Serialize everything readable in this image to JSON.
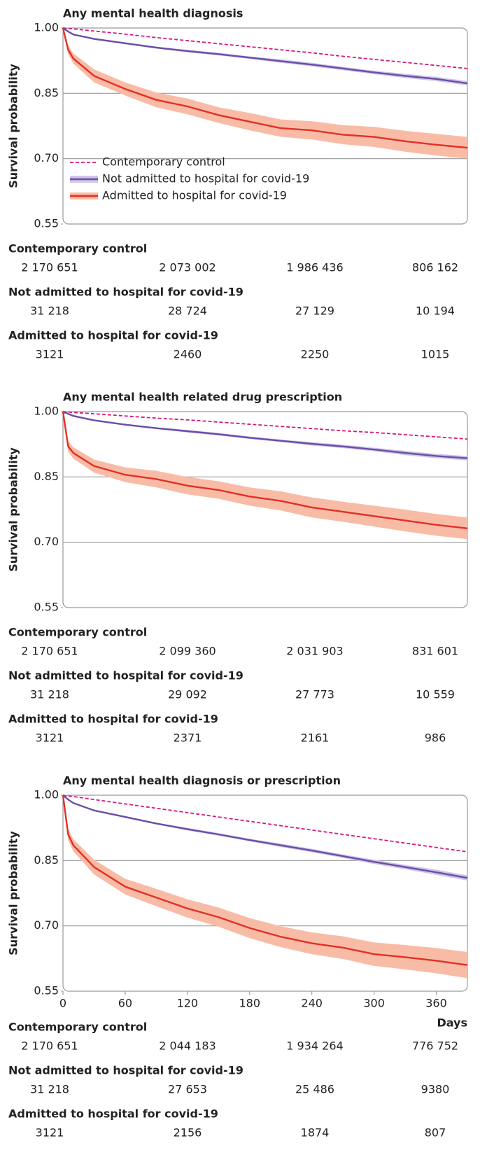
{
  "chart_data": [
    {
      "type": "line",
      "title": "Any mental health diagnosis",
      "ylabel": "Survival probability",
      "x": [
        0,
        5,
        10,
        30,
        60,
        90,
        120,
        150,
        180,
        210,
        240,
        270,
        300,
        330,
        360,
        390
      ],
      "xlim": [
        0,
        390
      ],
      "ylim": [
        0.55,
        1
      ],
      "yticks": [
        {
          "value": 1,
          "label": "1.00"
        },
        0.85,
        {
          "value": 0.7,
          "label": "0.70"
        },
        0.55
      ],
      "grid": true,
      "legend": "lower left",
      "series": [
        {
          "name": "Contemporary control",
          "color": "#d6197a",
          "line_style": "dashed",
          "values": [
            1,
            0.999,
            0.998,
            0.993,
            0.986,
            0.978,
            0.971,
            0.964,
            0.957,
            0.95,
            0.943,
            0.935,
            0.928,
            0.921,
            0.914,
            0.907
          ],
          "at_risk": [
            "2 170 651",
            "2 073 002",
            "1 986 436",
            "806 162"
          ]
        },
        {
          "name": "Not admitted to hospital for covid-19",
          "color": "#6a4fa8",
          "band_color": "#cfc5ea",
          "line_style": "solid",
          "values": [
            1,
            0.992,
            0.985,
            0.975,
            0.965,
            0.955,
            0.947,
            0.94,
            0.932,
            0.924,
            0.916,
            0.907,
            0.898,
            0.89,
            0.883,
            0.873
          ],
          "lower": [
            1,
            0.991,
            0.984,
            0.973,
            0.963,
            0.953,
            0.944,
            0.937,
            0.929,
            0.92,
            0.912,
            0.903,
            0.894,
            0.885,
            0.878,
            0.868
          ],
          "upper": [
            1,
            0.993,
            0.986,
            0.977,
            0.967,
            0.957,
            0.95,
            0.943,
            0.935,
            0.928,
            0.92,
            0.911,
            0.902,
            0.895,
            0.888,
            0.878
          ],
          "at_risk": [
            "31 218",
            "28 724",
            "27 129",
            "10 194"
          ]
        },
        {
          "name": "Admitted to hospital for covid-19",
          "color": "#e32f26",
          "band_color": "#f8bca6",
          "line_style": "solid",
          "values": [
            1,
            0.95,
            0.93,
            0.89,
            0.86,
            0.835,
            0.82,
            0.8,
            0.785,
            0.77,
            0.765,
            0.755,
            0.75,
            0.74,
            0.732,
            0.725
          ],
          "lower": [
            1,
            0.94,
            0.918,
            0.875,
            0.845,
            0.818,
            0.802,
            0.782,
            0.765,
            0.75,
            0.744,
            0.733,
            0.727,
            0.716,
            0.707,
            0.7
          ],
          "upper": [
            1,
            0.96,
            0.942,
            0.905,
            0.875,
            0.852,
            0.838,
            0.818,
            0.805,
            0.79,
            0.786,
            0.777,
            0.773,
            0.764,
            0.757,
            0.75
          ],
          "at_risk": [
            "3121",
            "2460",
            "2250",
            "1015"
          ]
        }
      ]
    },
    {
      "type": "line",
      "title": "Any mental health related drug prescription",
      "ylabel": "Survival probability",
      "x": [
        0,
        5,
        10,
        30,
        60,
        90,
        120,
        150,
        180,
        210,
        240,
        270,
        300,
        330,
        360,
        390
      ],
      "xlim": [
        0,
        390
      ],
      "ylim": [
        0.55,
        1
      ],
      "yticks": [
        {
          "value": 1,
          "label": "1.00"
        },
        0.85,
        {
          "value": 0.7,
          "label": "0.70"
        },
        0.55
      ],
      "grid": true,
      "series": [
        {
          "name": "Contemporary control",
          "color": "#d6197a",
          "line_style": "dashed",
          "values": [
            1,
            0.999,
            0.998,
            0.995,
            0.99,
            0.985,
            0.981,
            0.976,
            0.971,
            0.966,
            0.961,
            0.956,
            0.952,
            0.947,
            0.942,
            0.937
          ],
          "at_risk": [
            "2 170 651",
            "2 099 360",
            "2 031 903",
            "831 601"
          ]
        },
        {
          "name": "Not admitted to hospital for covid-19",
          "color": "#6a4fa8",
          "band_color": "#cfc5ea",
          "line_style": "solid",
          "values": [
            1,
            0.995,
            0.99,
            0.98,
            0.97,
            0.962,
            0.955,
            0.948,
            0.94,
            0.933,
            0.926,
            0.92,
            0.913,
            0.905,
            0.898,
            0.893
          ],
          "lower": [
            1,
            0.994,
            0.989,
            0.978,
            0.968,
            0.96,
            0.952,
            0.945,
            0.937,
            0.93,
            0.922,
            0.916,
            0.909,
            0.9,
            0.893,
            0.888
          ],
          "upper": [
            1,
            0.996,
            0.991,
            0.982,
            0.972,
            0.964,
            0.958,
            0.951,
            0.943,
            0.936,
            0.93,
            0.924,
            0.917,
            0.91,
            0.903,
            0.898
          ],
          "at_risk": [
            "31 218",
            "29 092",
            "27 773",
            "10 559"
          ]
        },
        {
          "name": "Admitted to hospital for covid-19",
          "color": "#e32f26",
          "band_color": "#f8bca6",
          "line_style": "solid",
          "values": [
            1,
            0.92,
            0.905,
            0.875,
            0.855,
            0.845,
            0.83,
            0.82,
            0.805,
            0.795,
            0.78,
            0.77,
            0.76,
            0.75,
            0.74,
            0.732
          ],
          "lower": [
            1,
            0.908,
            0.892,
            0.86,
            0.838,
            0.826,
            0.81,
            0.8,
            0.784,
            0.773,
            0.757,
            0.747,
            0.736,
            0.725,
            0.715,
            0.707
          ],
          "upper": [
            1,
            0.932,
            0.918,
            0.89,
            0.872,
            0.864,
            0.85,
            0.84,
            0.826,
            0.817,
            0.803,
            0.793,
            0.784,
            0.775,
            0.765,
            0.757
          ],
          "at_risk": [
            "3121",
            "2371",
            "2161",
            "986"
          ]
        }
      ]
    },
    {
      "type": "line",
      "title": "Any mental health diagnosis or prescription",
      "ylabel": "Survival probability",
      "xlabel": "Days",
      "x": [
        0,
        5,
        10,
        30,
        60,
        90,
        120,
        150,
        180,
        210,
        240,
        270,
        300,
        330,
        360,
        390
      ],
      "xlim": [
        0,
        390
      ],
      "ylim": [
        0.55,
        1
      ],
      "xticks": [
        0,
        60,
        120,
        180,
        240,
        300,
        360
      ],
      "yticks": [
        {
          "value": 1,
          "label": "1.00"
        },
        0.85,
        {
          "value": 0.7,
          "label": "0.70"
        },
        0.55
      ],
      "grid": true,
      "series": [
        {
          "name": "Contemporary control",
          "color": "#d6197a",
          "line_style": "dashed",
          "values": [
            1,
            0.998,
            0.997,
            0.99,
            0.98,
            0.97,
            0.96,
            0.95,
            0.94,
            0.93,
            0.92,
            0.91,
            0.9,
            0.89,
            0.88,
            0.87
          ],
          "at_risk": [
            "2 170 651",
            "2 044 183",
            "1 934 264",
            "776 752"
          ]
        },
        {
          "name": "Not admitted to hospital for covid-19",
          "color": "#6a4fa8",
          "band_color": "#cfc5ea",
          "line_style": "solid",
          "values": [
            1,
            0.99,
            0.982,
            0.965,
            0.95,
            0.935,
            0.922,
            0.91,
            0.897,
            0.885,
            0.873,
            0.86,
            0.847,
            0.835,
            0.823,
            0.81
          ],
          "lower": [
            1,
            0.989,
            0.981,
            0.963,
            0.948,
            0.933,
            0.919,
            0.907,
            0.894,
            0.881,
            0.869,
            0.856,
            0.842,
            0.83,
            0.817,
            0.804
          ],
          "upper": [
            1,
            0.991,
            0.983,
            0.967,
            0.952,
            0.937,
            0.925,
            0.913,
            0.9,
            0.889,
            0.877,
            0.864,
            0.852,
            0.84,
            0.829,
            0.816
          ],
          "at_risk": [
            "31 218",
            "27 653",
            "25 486",
            "9380"
          ]
        },
        {
          "name": "Admitted to hospital for covid-19",
          "color": "#e32f26",
          "band_color": "#f8bca6",
          "line_style": "solid",
          "values": [
            1,
            0.91,
            0.885,
            0.835,
            0.79,
            0.765,
            0.74,
            0.72,
            0.695,
            0.675,
            0.66,
            0.65,
            0.635,
            0.628,
            0.62,
            0.61
          ],
          "lower": [
            1,
            0.897,
            0.871,
            0.818,
            0.772,
            0.745,
            0.719,
            0.698,
            0.672,
            0.651,
            0.635,
            0.624,
            0.608,
            0.6,
            0.591,
            0.58
          ],
          "upper": [
            1,
            0.923,
            0.899,
            0.852,
            0.808,
            0.785,
            0.761,
            0.742,
            0.718,
            0.699,
            0.685,
            0.676,
            0.662,
            0.656,
            0.649,
            0.64
          ],
          "at_risk": [
            "3121",
            "2156",
            "1874",
            "807"
          ]
        }
      ]
    }
  ]
}
